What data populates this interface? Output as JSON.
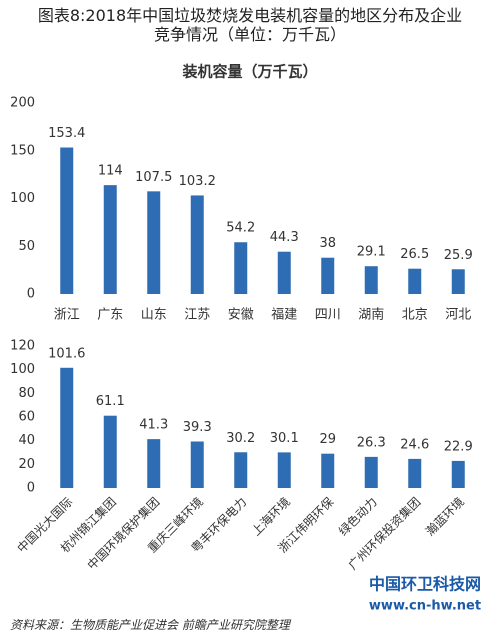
{
  "title": "图表8:2018年中国垃圾焚烧发电装机容量的地区分布及企业竞争情况（单位：万千瓦）",
  "source": "资料来源：生物质能产业促进会  前瞻产业研究院整理",
  "watermark": {
    "name": "中国环卫科技网",
    "url": "www.cn-hw.net"
  },
  "chart_data": [
    {
      "type": "bar",
      "title": "装机容量（万千瓦）",
      "categories": [
        "浙江",
        "广东",
        "山东",
        "江苏",
        "安徽",
        "福建",
        "四川",
        "湖南",
        "北京",
        "河北"
      ],
      "values": [
        153.4,
        114,
        107.5,
        103.2,
        54.2,
        44.3,
        38,
        29.1,
        26.5,
        25.9
      ],
      "color": "#2e6db4",
      "ylim": [
        0,
        200
      ],
      "yticks": [
        0,
        50,
        100,
        150,
        200
      ],
      "grid": false
    },
    {
      "type": "bar",
      "categories": [
        "中国光大国际",
        "杭州锦江集团",
        "中国环境保护集团",
        "重庆三峰环境",
        "粤丰环保电力",
        "上海环境",
        "浙江伟明环保",
        "绿色动力",
        "广州环保投资集团",
        "瀚蓝环境"
      ],
      "values": [
        101.6,
        61.1,
        41.3,
        39.3,
        30.2,
        30.1,
        29,
        26.3,
        24.6,
        22.9
      ],
      "color": "#2e6db4",
      "ylim": [
        0,
        120
      ],
      "yticks": [
        0,
        20,
        40,
        60,
        80,
        100,
        120
      ],
      "grid": false
    }
  ]
}
